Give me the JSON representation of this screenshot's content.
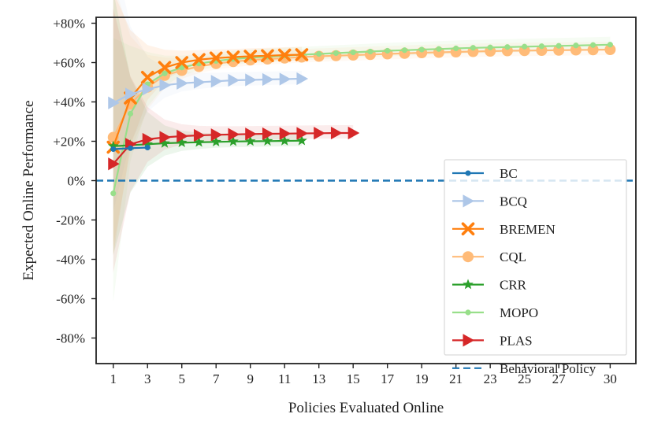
{
  "chart_data": {
    "type": "line",
    "xlabel": "Policies Evaluated Online",
    "ylabel": "Expected Online Performance",
    "xlim": [
      0,
      31.5
    ],
    "ylim": [
      -93,
      83
    ],
    "xticks": [
      1,
      3,
      5,
      7,
      9,
      11,
      13,
      15,
      17,
      19,
      21,
      23,
      25,
      27,
      30
    ],
    "yticks": [
      {
        "value": 80,
        "label": "+80%"
      },
      {
        "value": 60,
        "label": "+60%"
      },
      {
        "value": 40,
        "label": "+40%"
      },
      {
        "value": 20,
        "label": "+20%"
      },
      {
        "value": 0,
        "label": "0%"
      },
      {
        "value": -20,
        "label": "-20%"
      },
      {
        "value": -40,
        "label": "-40%"
      },
      {
        "value": -60,
        "label": "-60%"
      },
      {
        "value": -80,
        "label": "-80%"
      }
    ],
    "grid": false,
    "legend_position": "lower-right",
    "series": [
      {
        "name": "BC",
        "color": "#1f77b4",
        "marker": "circle",
        "x": [
          1,
          2,
          3
        ],
        "y": [
          16,
          16.5,
          16.8
        ]
      },
      {
        "name": "BCQ",
        "color": "#aec7e8",
        "marker": "triangle-right",
        "x": [
          1,
          2,
          3,
          4,
          5,
          6,
          7,
          8,
          9,
          10,
          11,
          12
        ],
        "y": [
          39.5,
          44,
          46.5,
          48.5,
          49.5,
          50,
          50.5,
          51,
          51.2,
          51.4,
          51.6,
          51.8
        ]
      },
      {
        "name": "BREMEN",
        "color": "#ff7f0e",
        "marker": "x",
        "x": [
          1,
          2,
          3,
          4,
          5,
          6,
          7,
          8,
          9,
          10,
          11,
          12
        ],
        "y": [
          17,
          42,
          52.5,
          57.5,
          60,
          61.5,
          62.3,
          62.8,
          63.2,
          63.5,
          63.8,
          64
        ]
      },
      {
        "name": "CQL",
        "color": "#ffbb78",
        "marker": "circle",
        "x": [
          1,
          2,
          3,
          4,
          5,
          6,
          7,
          8,
          9,
          10,
          11,
          12,
          13,
          14,
          15,
          16,
          17,
          18,
          19,
          20,
          21,
          22,
          23,
          24,
          25,
          26,
          27,
          28,
          29,
          30
        ],
        "y": [
          22,
          39,
          47.5,
          53.5,
          56,
          58,
          59.5,
          60.5,
          61.3,
          61.8,
          62.3,
          62.8,
          63.2,
          63.5,
          63.8,
          64.1,
          64.4,
          64.7,
          65,
          65.2,
          65.4,
          65.6,
          65.8,
          66,
          66.1,
          66.2,
          66.3,
          66.4,
          66.5,
          66.6
        ]
      },
      {
        "name": "CRR",
        "color": "#2ca02c",
        "marker": "star",
        "x": [
          1,
          2,
          3,
          4,
          5,
          6,
          7,
          8,
          9,
          10,
          11,
          12
        ],
        "y": [
          17.5,
          18,
          18.5,
          19,
          19.3,
          19.5,
          19.7,
          19.9,
          20,
          20.1,
          20.2,
          20.3
        ]
      },
      {
        "name": "MOPO",
        "color": "#98df8a",
        "marker": "dot",
        "x": [
          1,
          2,
          3,
          4,
          5,
          6,
          7,
          8,
          9,
          10,
          11,
          12,
          13,
          14,
          15,
          16,
          17,
          18,
          19,
          20,
          21,
          22,
          23,
          24,
          25,
          26,
          27,
          28,
          29,
          30
        ],
        "y": [
          -6.5,
          34,
          49,
          54.5,
          57.5,
          59.5,
          60.8,
          61.8,
          62.5,
          63,
          63.5,
          64,
          64.4,
          64.8,
          65.2,
          65.6,
          66,
          66.3,
          66.6,
          66.9,
          67.2,
          67.5,
          67.7,
          67.9,
          68.1,
          68.3,
          68.5,
          68.7,
          68.9,
          69.1
        ]
      },
      {
        "name": "PLAS",
        "color": "#d62728",
        "marker": "triangle-right",
        "x": [
          1,
          2,
          3,
          4,
          5,
          6,
          7,
          8,
          9,
          10,
          11,
          12,
          13,
          14,
          15
        ],
        "y": [
          8.5,
          18.5,
          21,
          22,
          22.6,
          23,
          23.3,
          23.5,
          23.7,
          23.8,
          23.9,
          24,
          24.1,
          24.2,
          24.2
        ]
      },
      {
        "name": "Behavioral Policy",
        "color": "#1f77b4",
        "marker": "none",
        "dashed": true,
        "x": [
          0,
          31.5
        ],
        "y": [
          0,
          0
        ]
      }
    ]
  }
}
